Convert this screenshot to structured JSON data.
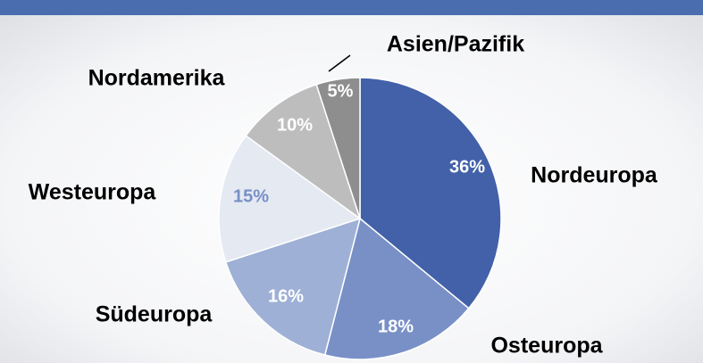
{
  "chart_data": {
    "type": "pie",
    "categories": [
      "Nordeuropa",
      "Osteuropa",
      "Südeuropa",
      "Westeuropa",
      "Nordamerika",
      "Asien/Pazifik"
    ],
    "values": [
      36,
      18,
      16,
      15,
      10,
      5
    ],
    "value_labels": [
      "36%",
      "18%",
      "16%",
      "15%",
      "10%",
      "5%"
    ],
    "colors": [
      "#4261a9",
      "#7890c6",
      "#9eb0d5",
      "#e4e9f2",
      "#bdbdbd",
      "#8e8e8e"
    ]
  }
}
